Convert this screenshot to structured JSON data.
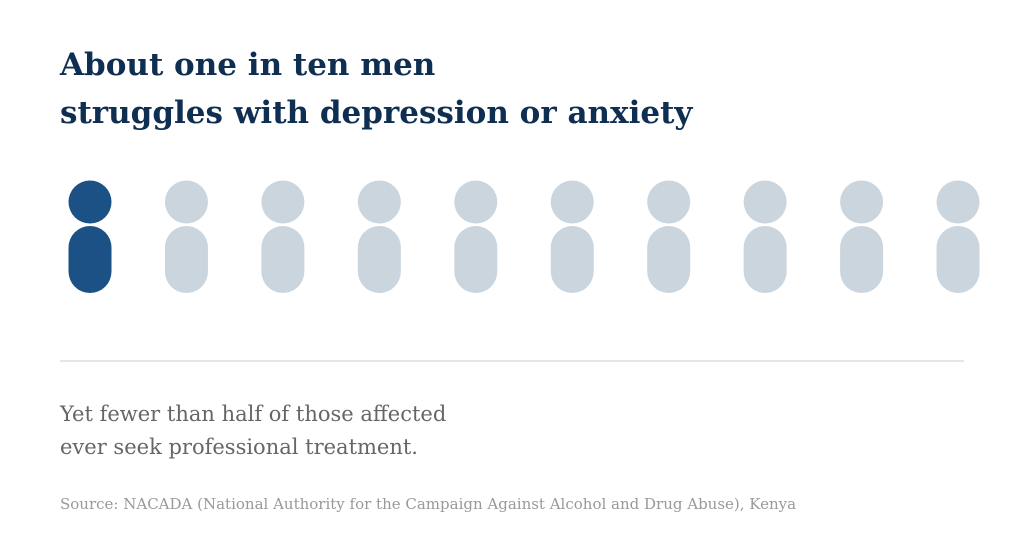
{
  "chart_data": {
    "type": "pictogram",
    "title": [
      "About one in ten men",
      "struggles with depression or anxiety"
    ],
    "series": [
      {
        "color": "#1c5185",
        "values": [
          1
        ]
      },
      {
        "color": "#cbd5de",
        "values": [
          9
        ]
      }
    ],
    "subtitle": [
      "Yet fewer than half of those affected",
      "ever seek professional treatment."
    ],
    "source": "Source: NACADA (National Authority for the Campaign Against Alcohol and Drug Abuse), Kenya"
  }
}
